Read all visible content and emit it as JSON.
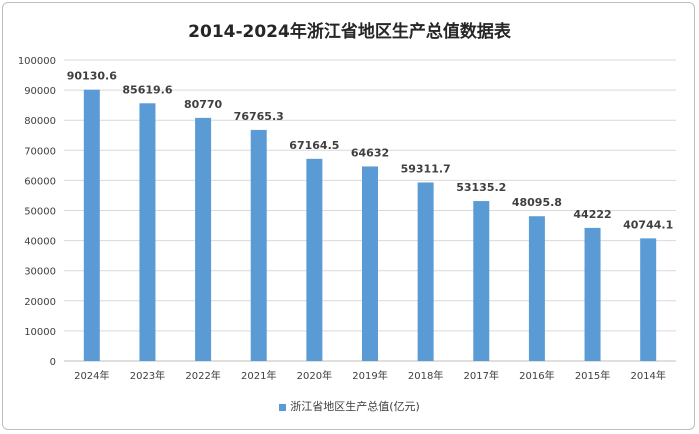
{
  "chart_data": {
    "type": "bar",
    "title": "2014-2024年浙江省地区生产总值数据表",
    "categories": [
      "2024年",
      "2023年",
      "2022年",
      "2021年",
      "2020年",
      "2019年",
      "2018年",
      "2017年",
      "2016年",
      "2015年",
      "2014年"
    ],
    "series": [
      {
        "name": "浙江省地区生产总值(亿元)",
        "values": [
          90130.6,
          85619.6,
          80770,
          76765.3,
          67164.5,
          64632,
          59311.7,
          53135.2,
          48095.8,
          44222,
          40744.1
        ],
        "labels": [
          "90130.6",
          "85619.6",
          "80770",
          "76765.3",
          "67164.5",
          "64632",
          "59311.7",
          "53135.2",
          "48095.8",
          "44222",
          "40744.1"
        ]
      }
    ],
    "yticks": [
      "0",
      "10000",
      "20000",
      "30000",
      "40000",
      "50000",
      "60000",
      "70000",
      "80000",
      "90000",
      "100000"
    ],
    "ylim": [
      0,
      100000
    ],
    "xlabel": "",
    "ylabel": "",
    "grid": true,
    "legend": "bottom",
    "color": "#5b9bd5"
  }
}
